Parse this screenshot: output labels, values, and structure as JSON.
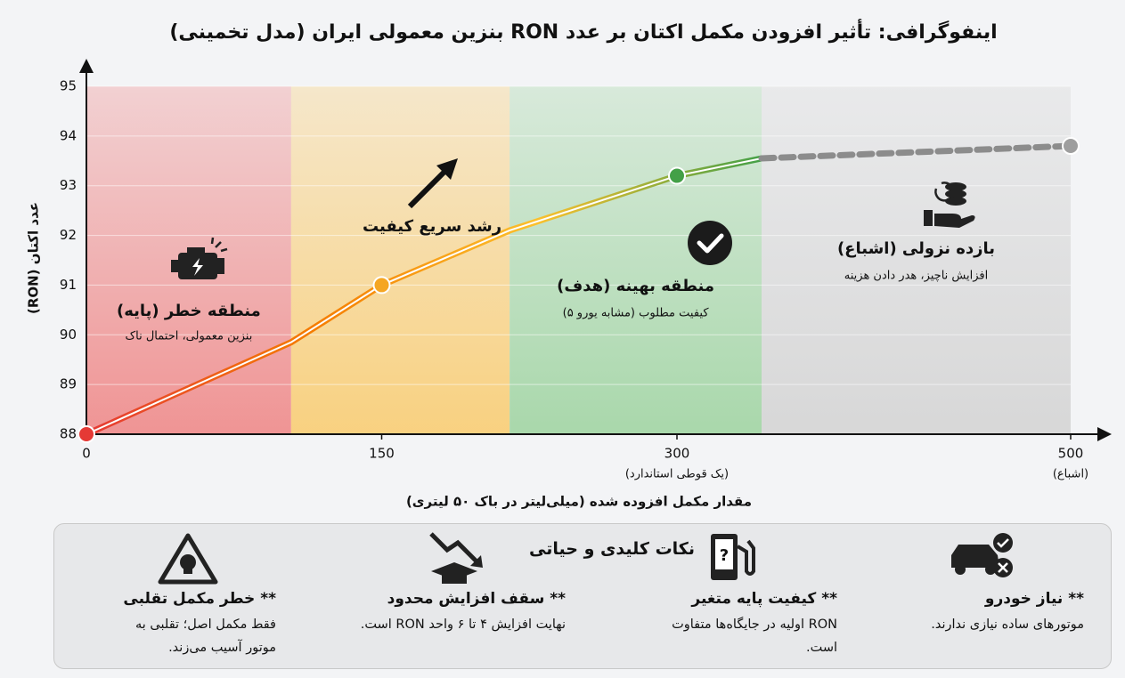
{
  "title": "اینفوگرافی: تأثیر افزودن مکمل اکتان بر عدد RON بنزین معمولی ایران (مدل تخمینی)",
  "chart_data": {
    "type": "line",
    "x_label": "مقدار مکمل افزوده شده (میلی‌لیتر در باک ۵۰ لیتری)",
    "y_label": "عدد اکتان (RON)",
    "xlim": [
      0,
      500
    ],
    "ylim": [
      88,
      95
    ],
    "xticks": [
      0,
      150,
      300,
      500
    ],
    "xtick_notes": [
      null,
      null,
      "(یک قوطی استاندارد)",
      "(اشباع)"
    ],
    "yticks": [
      88,
      89,
      90,
      91,
      92,
      93,
      94,
      95
    ],
    "grid": true,
    "series": [
      {
        "x": [
          0,
          104,
          150,
          215,
          300,
          343
        ],
        "values": [
          88,
          89.85,
          91,
          92.1,
          93.2,
          93.55
        ],
        "gradient_colors": [
          "#e53935",
          "#f57c00",
          "#fbc02d",
          "#43a047"
        ]
      },
      {
        "x": [
          343,
          500
        ],
        "values": [
          93.55,
          93.8
        ],
        "color": "#8c8c8c",
        "dashed": true
      }
    ],
    "points": {
      "x": [
        0,
        150,
        300,
        500
      ],
      "values": [
        88,
        91,
        93.2,
        93.8
      ],
      "colors": [
        "#e53935",
        "#f5a623",
        "#43a047",
        "#9e9e9e"
      ]
    },
    "zones": [
      {
        "from": 0,
        "to": 104,
        "color": "#ef8f8f",
        "title": "منطقه خطر (پایه)",
        "note": "بنزین معمولی، احتمال ناک"
      },
      {
        "from": 104,
        "to": 215,
        "color": "#f9cf7a"
      },
      {
        "from": 215,
        "to": 343,
        "color": "#a5d6a7",
        "title": "منطقه بهینه (هدف)",
        "note": "کیفیت مطلوب (مشابه یورو ۵)"
      },
      {
        "from": 343,
        "to": 500,
        "color": "#d6d6d6",
        "title": "بازده نزولی (اشباع)",
        "note": "افزایش ناچیز، هدر دادن هزینه"
      }
    ],
    "annotation": "رشد سریع کیفیت"
  },
  "tips": {
    "title": "نکات کلیدی و حیاتی",
    "items": [
      {
        "title": "** نیاز خودرو",
        "text": "موتورهای ساده نیازی ندارند."
      },
      {
        "title": "** کیفیت پایه متغیر",
        "text": "RON اولیه در جایگاه‌ها متفاوت است."
      },
      {
        "title": "** سقف افزایش محدود",
        "text": "نهایت افزایش ۴ تا ۶ واحد RON است."
      },
      {
        "title": "** خطر مکمل تقلبی",
        "text": "فقط مکمل اصل؛ تقلبی به موتور آسیب می‌زند."
      }
    ]
  }
}
